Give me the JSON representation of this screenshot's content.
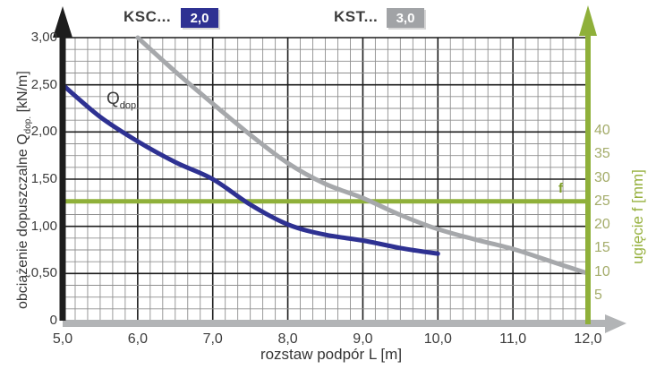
{
  "legend": {
    "series1": {
      "label": "KSC...",
      "badge": "2,0",
      "color": "#2e3192"
    },
    "series2": {
      "label": "KST...",
      "badge": "3,0",
      "color": "#a1a3a6"
    }
  },
  "labels": {
    "q_main": "Q",
    "q_sub": "dop.",
    "f_marker": "f"
  },
  "axes": {
    "x": {
      "title": "rozstaw podpór L [m]",
      "tick_labels": [
        "5,0",
        "6,0",
        "7,0",
        "8,0",
        "9,0",
        "10,0",
        "11,0",
        "12,0"
      ],
      "tick_values": [
        5,
        6,
        7,
        8,
        9,
        10,
        11,
        12
      ],
      "min": 5,
      "max": 12
    },
    "y_left": {
      "title_main": "obciążenie dopuszczalne Q",
      "title_sub": "dop.",
      "title_unit": " [kN/m]",
      "tick_labels": [
        "0",
        "0,50",
        "1,00",
        "1,50",
        "2,00",
        "2,50",
        "3,00"
      ],
      "tick_values": [
        0,
        0.5,
        1.0,
        1.5,
        2.0,
        2.5,
        3.0
      ],
      "min": 0,
      "max": 3
    },
    "y_right": {
      "title": "ugięcie f [mm]",
      "tick_labels": [
        "5",
        "10",
        "15",
        "20",
        "25",
        "30",
        "35",
        "40"
      ],
      "tick_values": [
        5,
        10,
        15,
        20,
        25,
        30,
        35,
        40
      ],
      "min": 0,
      "max": 60
    }
  },
  "chart_data": {
    "type": "line",
    "xlabel": "rozstaw podpór L [m]",
    "ylabel_left": "obciążenie dopuszczalne Qdop. [kN/m]",
    "ylabel_right": "ugięcie f [mm]",
    "xlim": [
      5.0,
      12.0
    ],
    "ylim_left": [
      0,
      3.0
    ],
    "ylim_right": [
      0,
      60
    ],
    "grid": "fine squares, major lines each 1.0 m (x) and 0.5 kN/m (y)",
    "legend_position": "top",
    "series": [
      {
        "name": "KSC... 2,0",
        "color": "#2e3192",
        "x": [
          5.0,
          5.5,
          6.0,
          6.5,
          7.0,
          7.5,
          8.0,
          8.5,
          9.0,
          9.5,
          10.0
        ],
        "y": [
          2.5,
          2.16,
          1.9,
          1.68,
          1.5,
          1.23,
          1.02,
          0.91,
          0.85,
          0.77,
          0.71
        ]
      },
      {
        "name": "KST... 3,0",
        "color": "#a6a8ab",
        "x": [
          6.0,
          6.5,
          7.0,
          7.5,
          8.0,
          8.5,
          9.0,
          9.5,
          10.0,
          10.5,
          11.0,
          11.5,
          12.0
        ],
        "y": [
          3.0,
          2.64,
          2.3,
          1.97,
          1.67,
          1.45,
          1.3,
          1.12,
          0.97,
          0.86,
          0.76,
          0.63,
          0.5
        ]
      }
    ],
    "reference_line": {
      "axis": "y_right",
      "value": 25,
      "label": "f",
      "color": "#8fb03a",
      "meaning": "deflection limit line at f = 25 mm"
    },
    "annotations": [
      {
        "text": "Qdop.",
        "x": 5.65,
        "y": 2.35,
        "series": "KSC... 2,0"
      }
    ]
  },
  "colors": {
    "curve_ksc": "#2e3192",
    "curve_kst": "#a6a8ab",
    "green_axis": "#8fb03a",
    "x_axis_gray": "#b2b4b6",
    "y_axis_black": "#1d1d1d",
    "grid_minor": "#8f8f8f",
    "grid_major": "#1c1c1c"
  }
}
